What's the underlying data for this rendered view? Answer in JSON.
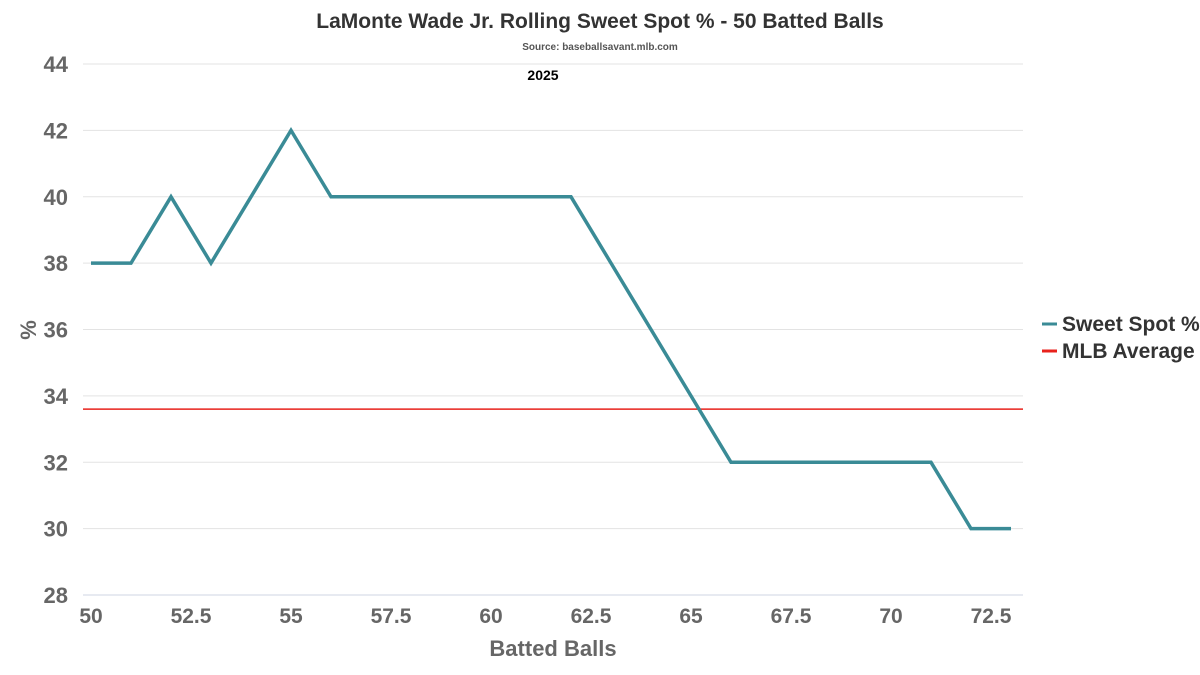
{
  "chart_data": {
    "type": "line",
    "title": "LaMonte Wade Jr. Rolling Sweet Spot % - 50 Batted Balls",
    "subtitle": "Source: baseballsavant.mlb.com",
    "annotation": "2025",
    "xlabel": "Batted Balls",
    "ylabel": "%",
    "xlim": [
      49.8,
      73.3
    ],
    "ylim": [
      28,
      44
    ],
    "xticks": [
      50,
      52.5,
      55,
      57.5,
      60,
      62.5,
      65,
      67.5,
      70,
      72.5
    ],
    "xtick_labels": [
      "50",
      "52.5",
      "55",
      "57.5",
      "60",
      "62.5",
      "65",
      "67.5",
      "70",
      "72.5"
    ],
    "yticks": [
      28,
      30,
      32,
      34,
      36,
      38,
      40,
      42,
      44
    ],
    "ytick_labels": [
      "28",
      "30",
      "32",
      "34",
      "36",
      "38",
      "40",
      "42",
      "44"
    ],
    "grid": "horizontal",
    "legend_position": "right",
    "series": [
      {
        "name": "Sweet Spot %",
        "color": "#3a8b96",
        "x": [
          50,
          51,
          52,
          53,
          54,
          55,
          56,
          57,
          58,
          59,
          60,
          61,
          62,
          63,
          64,
          65,
          66,
          67,
          68,
          69,
          70,
          71,
          72,
          73
        ],
        "values": [
          38,
          38,
          40,
          38,
          40,
          42,
          40,
          40,
          40,
          40,
          40,
          40,
          40,
          38,
          36,
          34,
          32,
          32,
          32,
          32,
          32,
          32,
          30,
          30
        ]
      },
      {
        "name": "MLB Average",
        "color": "#e8221c",
        "x": [
          49.8,
          73.3
        ],
        "values": [
          33.6,
          33.6
        ]
      }
    ]
  }
}
